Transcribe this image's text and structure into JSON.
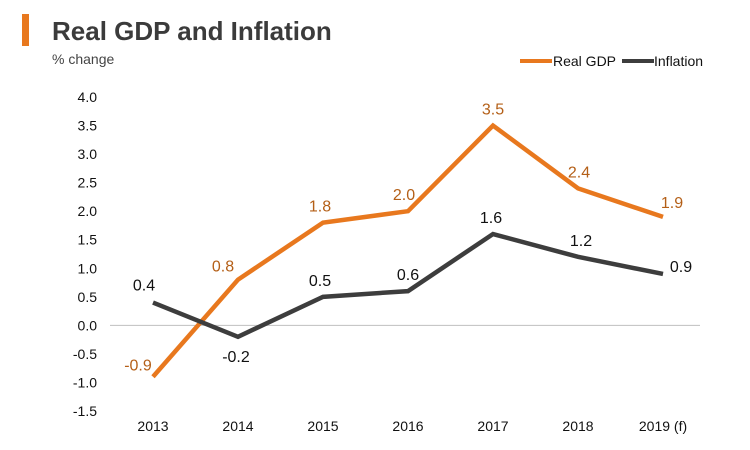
{
  "title": "Real GDP and Inflation",
  "subtitle": "% change",
  "colors": {
    "accent_bar": "#e8781e",
    "real_gdp": "#e8781e",
    "real_gdp_label": "#b45f17",
    "inflation": "#3d3d3d",
    "inflation_label": "#111111",
    "axis": "#bfbfbf"
  },
  "chart_data": {
    "type": "line",
    "categories": [
      "2013",
      "2014",
      "2015",
      "2016",
      "2017",
      "2018",
      "2019 (f)"
    ],
    "series": [
      {
        "name": "Real GDP",
        "values": [
          -0.9,
          0.8,
          1.8,
          2.0,
          3.5,
          2.4,
          1.9
        ]
      },
      {
        "name": "Inflation",
        "values": [
          0.4,
          -0.2,
          0.5,
          0.6,
          1.6,
          1.2,
          0.9
        ]
      }
    ],
    "data_labels": [
      [
        "-0.9",
        "0.8",
        "1.8",
        "2.0",
        "3.5",
        "2.4",
        "1.9"
      ],
      [
        "0.4",
        "-0.2",
        "0.5",
        "0.6",
        "1.6",
        "1.2",
        "0.9"
      ]
    ],
    "ylim": [
      -1.5,
      4.0
    ],
    "yticks": [
      "4.0",
      "3.5",
      "3.0",
      "2.5",
      "2.0",
      "1.5",
      "1.0",
      "0.5",
      "0.0",
      "-0.5",
      "-1.0",
      "-1.5"
    ],
    "legend_position": "top-right",
    "grid": false
  }
}
